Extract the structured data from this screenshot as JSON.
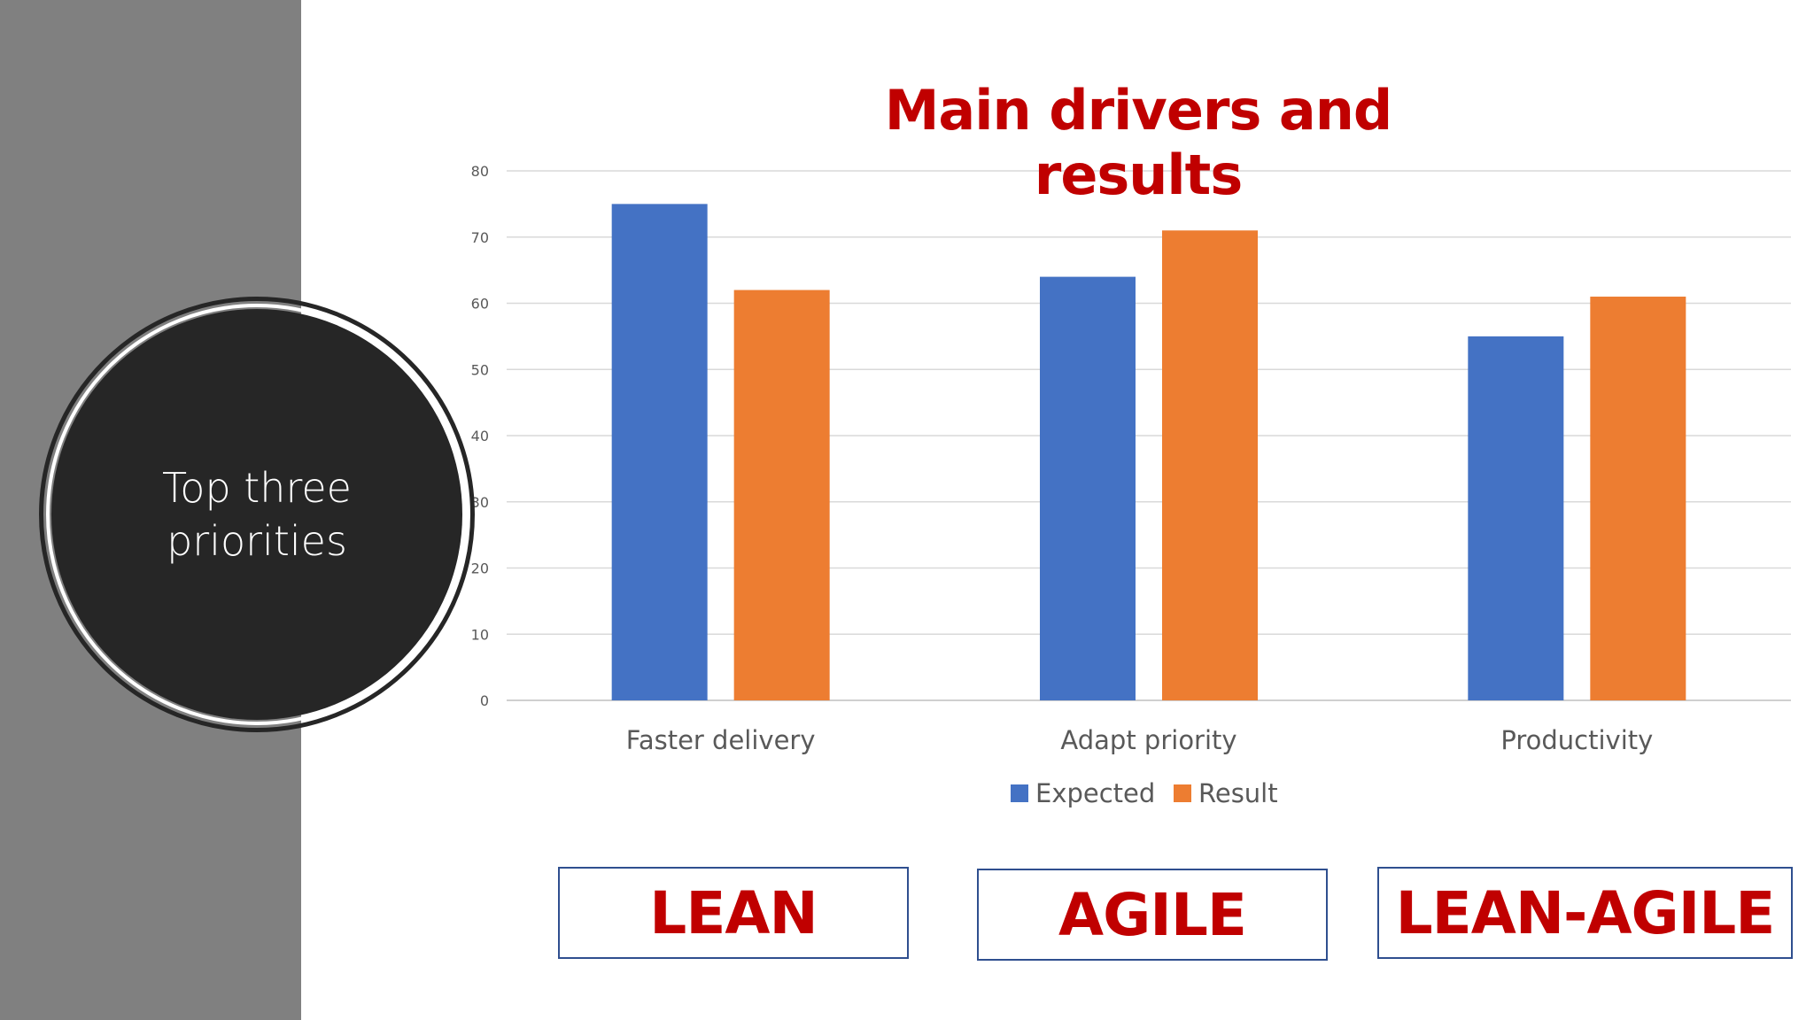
{
  "sidebar": {
    "circle_text": "Top three priorities"
  },
  "chart_data": {
    "type": "bar",
    "title": "Main drivers and results",
    "categories": [
      "Faster delivery",
      "Adapt priority",
      "Productivity"
    ],
    "series": [
      {
        "name": "Expected",
        "values": [
          75,
          64,
          55
        ],
        "color": "#4472c4"
      },
      {
        "name": "Result",
        "values": [
          62,
          71,
          61
        ],
        "color": "#ed7d31"
      }
    ],
    "ylim": [
      0,
      80
    ],
    "yticks": [
      0,
      10,
      20,
      30,
      40,
      50,
      60,
      70,
      80
    ],
    "grid": true,
    "legend": "bottom"
  },
  "tags": [
    "LEAN",
    "AGILE",
    "LEAN-AGILE"
  ]
}
